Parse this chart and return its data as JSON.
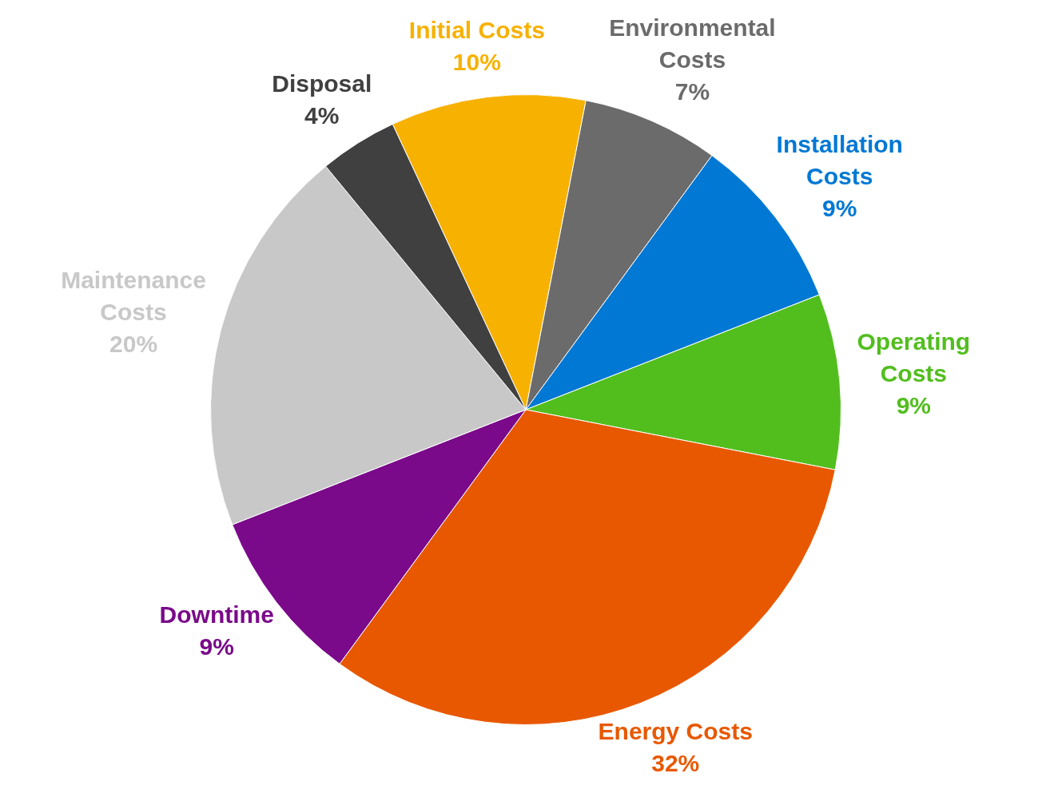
{
  "chart_data": {
    "type": "pie",
    "categories": [
      "Initial Costs",
      "Environmental Costs",
      "Installation Costs",
      "Operating Costs",
      "Energy Costs",
      "Downtime",
      "Maintenance Costs",
      "Disposal"
    ],
    "values": [
      10,
      7,
      9,
      9,
      32,
      9,
      20,
      4
    ],
    "value_labels": [
      "10%",
      "7%",
      "9%",
      "9%",
      "32%",
      "9%",
      "20%",
      "4%"
    ],
    "colors": [
      "#f7b100",
      "#6b6b6b",
      "#0078d4",
      "#52be1e",
      "#e85800",
      "#7a0a8a",
      "#c8c8c8",
      "#404040"
    ],
    "legend": false
  }
}
